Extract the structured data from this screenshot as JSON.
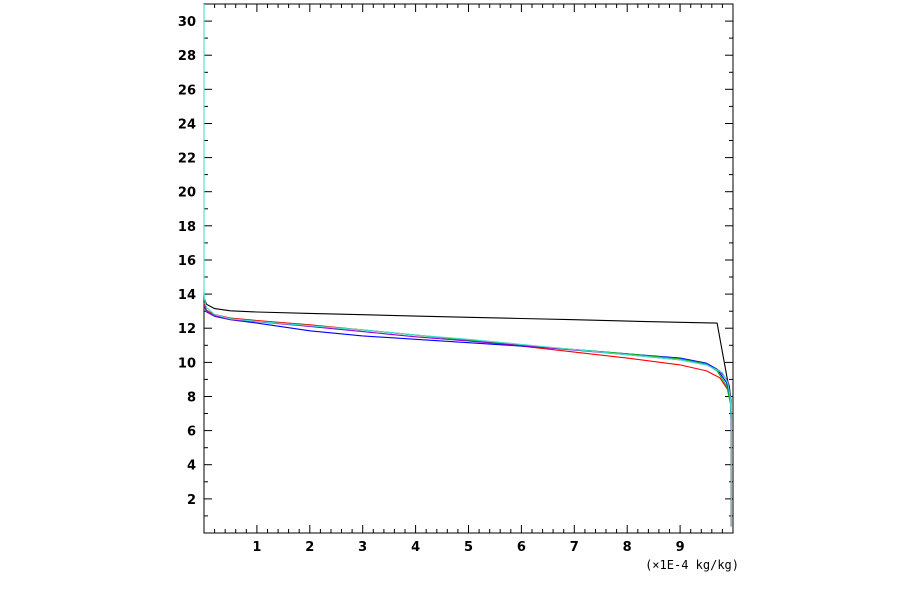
{
  "chart_data": {
    "type": "line",
    "title": "",
    "xlabel": "",
    "ylabel": "",
    "x_unit_label": "(×1E-4 kg/kg)",
    "xlim": [
      0,
      10
    ],
    "ylim": [
      0,
      31
    ],
    "x_ticks": [
      1,
      2,
      3,
      4,
      5,
      6,
      7,
      8,
      9
    ],
    "y_ticks": [
      2,
      4,
      6,
      8,
      10,
      12,
      14,
      16,
      18,
      20,
      22,
      24,
      26,
      28,
      30
    ],
    "grid": false,
    "legend": "none",
    "series": [
      {
        "color": "#000000",
        "points": [
          [
            9.97,
            0.4
          ],
          [
            9.97,
            6.0
          ],
          [
            9.96,
            7.8
          ],
          [
            9.93,
            8.6
          ],
          [
            9.9,
            8.9
          ],
          [
            9.7,
            12.3
          ],
          [
            9.0,
            12.35
          ],
          [
            8.0,
            12.42
          ],
          [
            7.0,
            12.5
          ],
          [
            6.0,
            12.57
          ],
          [
            5.0,
            12.64
          ],
          [
            4.0,
            12.71
          ],
          [
            3.0,
            12.79
          ],
          [
            2.0,
            12.87
          ],
          [
            1.0,
            12.95
          ],
          [
            0.5,
            13.02
          ],
          [
            0.2,
            13.15
          ],
          [
            0.05,
            13.4
          ],
          [
            0.01,
            13.7
          ]
        ]
      },
      {
        "color": "#ff0000",
        "points": [
          [
            9.97,
            0.4
          ],
          [
            9.97,
            6.0
          ],
          [
            9.96,
            7.5
          ],
          [
            9.9,
            8.4
          ],
          [
            9.75,
            9.1
          ],
          [
            9.5,
            9.5
          ],
          [
            9.0,
            9.85
          ],
          [
            8.0,
            10.25
          ],
          [
            7.0,
            10.6
          ],
          [
            6.0,
            10.95
          ],
          [
            5.0,
            11.3
          ],
          [
            4.0,
            11.6
          ],
          [
            3.0,
            11.9
          ],
          [
            2.0,
            12.2
          ],
          [
            1.0,
            12.45
          ],
          [
            0.5,
            12.6
          ],
          [
            0.2,
            12.8
          ],
          [
            0.05,
            13.05
          ],
          [
            0.01,
            13.4
          ]
        ]
      },
      {
        "color": "#0000ff",
        "points": [
          [
            9.97,
            0.4
          ],
          [
            9.97,
            6.0
          ],
          [
            9.95,
            7.8
          ],
          [
            9.88,
            8.8
          ],
          [
            9.7,
            9.6
          ],
          [
            9.5,
            9.95
          ],
          [
            9.0,
            10.25
          ],
          [
            8.0,
            10.5
          ],
          [
            7.0,
            10.75
          ],
          [
            6.0,
            10.95
          ],
          [
            5.0,
            11.15
          ],
          [
            4.0,
            11.35
          ],
          [
            3.0,
            11.55
          ],
          [
            2.0,
            11.85
          ],
          [
            1.0,
            12.3
          ],
          [
            0.5,
            12.5
          ],
          [
            0.2,
            12.7
          ],
          [
            0.05,
            12.95
          ],
          [
            0.01,
            13.3
          ]
        ]
      },
      {
        "color": "#00c000",
        "points": [
          [
            9.97,
            0.4
          ],
          [
            9.97,
            6.0
          ],
          [
            9.95,
            7.6
          ],
          [
            9.88,
            8.6
          ],
          [
            9.7,
            9.5
          ],
          [
            9.5,
            9.9
          ],
          [
            9.0,
            10.2
          ],
          [
            8.0,
            10.5
          ],
          [
            7.0,
            10.75
          ],
          [
            6.0,
            11.0
          ],
          [
            5.0,
            11.3
          ],
          [
            4.0,
            11.6
          ],
          [
            3.0,
            11.9
          ],
          [
            2.0,
            12.15
          ],
          [
            1.0,
            12.4
          ],
          [
            0.5,
            12.55
          ],
          [
            0.2,
            12.75
          ],
          [
            0.05,
            13.0
          ],
          [
            0.01,
            13.35
          ]
        ]
      },
      {
        "color": "#9400d3",
        "points": [
          [
            9.97,
            0.4
          ],
          [
            9.97,
            6.0
          ],
          [
            9.95,
            8.0
          ],
          [
            9.9,
            8.9
          ],
          [
            9.75,
            9.5
          ],
          [
            9.5,
            9.85
          ],
          [
            9.0,
            10.15
          ],
          [
            8.0,
            10.45
          ],
          [
            7.0,
            10.72
          ],
          [
            6.0,
            10.98
          ],
          [
            5.0,
            11.25
          ],
          [
            4.0,
            11.5
          ],
          [
            3.0,
            11.8
          ],
          [
            2.0,
            12.1
          ],
          [
            1.0,
            12.38
          ],
          [
            0.5,
            12.52
          ],
          [
            0.2,
            12.72
          ],
          [
            0.05,
            12.98
          ],
          [
            0.01,
            13.3
          ]
        ]
      },
      {
        "color": "#40e0d0",
        "points": [
          [
            0.0,
            31.0
          ],
          [
            0.0,
            14.2
          ],
          [
            0.01,
            13.7
          ],
          [
            0.05,
            13.2
          ],
          [
            0.2,
            12.8
          ],
          [
            0.5,
            12.55
          ],
          [
            1.0,
            12.4
          ],
          [
            2.0,
            12.15
          ],
          [
            3.0,
            11.9
          ],
          [
            4.0,
            11.6
          ],
          [
            5.0,
            11.35
          ],
          [
            6.0,
            11.05
          ],
          [
            7.0,
            10.75
          ],
          [
            8.0,
            10.45
          ],
          [
            9.0,
            10.15
          ],
          [
            9.5,
            9.85
          ],
          [
            9.8,
            9.4
          ],
          [
            9.9,
            8.8
          ],
          [
            9.95,
            7.9
          ],
          [
            9.97,
            6.5
          ],
          [
            9.97,
            0.4
          ]
        ]
      }
    ]
  }
}
